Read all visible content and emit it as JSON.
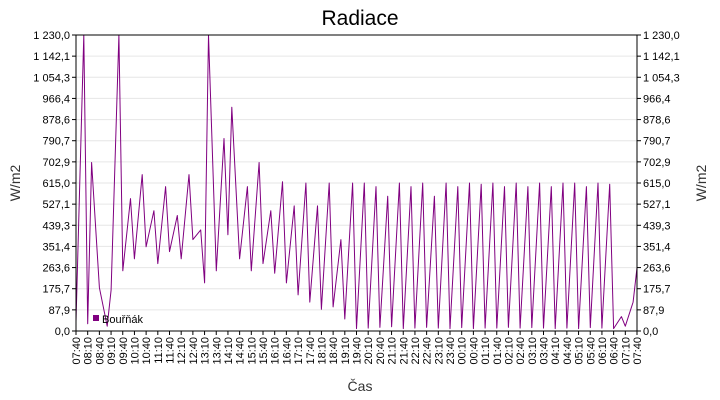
{
  "chart_data": {
    "type": "line",
    "title": "Radiace",
    "xlabel": "Čas",
    "ylabel_left": "W/m2",
    "ylabel_right": "W/m2",
    "ylim": [
      0,
      1230
    ],
    "y_ticks": [
      "0,0",
      "87,9",
      "175,7",
      "263,6",
      "351,4",
      "439,3",
      "527,1",
      "615,0",
      "702,9",
      "790,7",
      "878,6",
      "966,4",
      "1 054,3",
      "1 142,1",
      "1 230,0"
    ],
    "x_ticks": [
      "07:40",
      "08:10",
      "08:40",
      "09:10",
      "09:40",
      "10:10",
      "10:40",
      "11:10",
      "11:40",
      "12:10",
      "12:40",
      "13:10",
      "13:40",
      "14:10",
      "14:40",
      "15:10",
      "15:40",
      "16:10",
      "16:40",
      "17:10",
      "17:40",
      "18:10",
      "18:40",
      "19:10",
      "19:40",
      "20:10",
      "20:40",
      "21:10",
      "21:40",
      "22:10",
      "22:40",
      "23:10",
      "23:40",
      "00:10",
      "00:40",
      "01:10",
      "01:40",
      "02:10",
      "02:40",
      "03:10",
      "03:40",
      "04:10",
      "04:40",
      "05:10",
      "05:40",
      "06:10",
      "06:40",
      "07:10",
      "07:40"
    ],
    "grid": true,
    "legend": "bottom-left",
    "series": [
      {
        "name": "Bouřňák",
        "color": "#800080",
        "x": [
          "07:40",
          "08:00",
          "08:10",
          "08:20",
          "08:40",
          "09:00",
          "09:10",
          "09:30",
          "09:40",
          "10:00",
          "10:10",
          "10:30",
          "10:40",
          "11:00",
          "11:10",
          "11:30",
          "11:40",
          "12:00",
          "12:10",
          "12:30",
          "12:40",
          "13:00",
          "13:10",
          "13:20",
          "13:40",
          "14:00",
          "14:10",
          "14:20",
          "14:40",
          "15:00",
          "15:10",
          "15:30",
          "15:40",
          "16:00",
          "16:10",
          "16:30",
          "16:40",
          "17:00",
          "17:10",
          "17:30",
          "17:40",
          "18:00",
          "18:10",
          "18:30",
          "18:40",
          "19:00",
          "19:10",
          "19:30",
          "19:40",
          "20:00",
          "20:10",
          "20:30",
          "20:40",
          "21:00",
          "21:10",
          "21:30",
          "21:40",
          "22:00",
          "22:10",
          "22:30",
          "22:40",
          "23:00",
          "23:10",
          "23:30",
          "23:40",
          "00:00",
          "00:10",
          "00:30",
          "00:40",
          "01:00",
          "01:10",
          "01:30",
          "01:40",
          "02:00",
          "02:10",
          "02:30",
          "02:40",
          "03:00",
          "03:10",
          "03:30",
          "03:40",
          "04:00",
          "04:10",
          "04:30",
          "04:40",
          "05:00",
          "05:10",
          "05:30",
          "05:40",
          "06:00",
          "06:10",
          "06:30",
          "06:40",
          "07:00",
          "07:10",
          "07:30",
          "07:40"
        ],
        "y": [
          40,
          1230,
          30,
          700,
          180,
          20,
          170,
          1230,
          250,
          550,
          300,
          650,
          350,
          500,
          280,
          600,
          330,
          480,
          300,
          650,
          380,
          420,
          200,
          1230,
          250,
          800,
          400,
          930,
          300,
          600,
          250,
          700,
          280,
          500,
          240,
          620,
          200,
          520,
          150,
          615,
          120,
          520,
          90,
          615,
          100,
          380,
          50,
          615,
          10,
          615,
          12,
          600,
          15,
          560,
          18,
          615,
          10,
          600,
          12,
          615,
          15,
          560,
          12,
          615,
          10,
          600,
          14,
          615,
          10,
          610,
          12,
          615,
          12,
          600,
          15,
          615,
          12,
          600,
          14,
          615,
          12,
          600,
          10,
          615,
          12,
          615,
          10,
          600,
          14,
          615,
          12,
          610,
          10,
          60,
          20,
          120,
          263
        ]
      }
    ]
  }
}
